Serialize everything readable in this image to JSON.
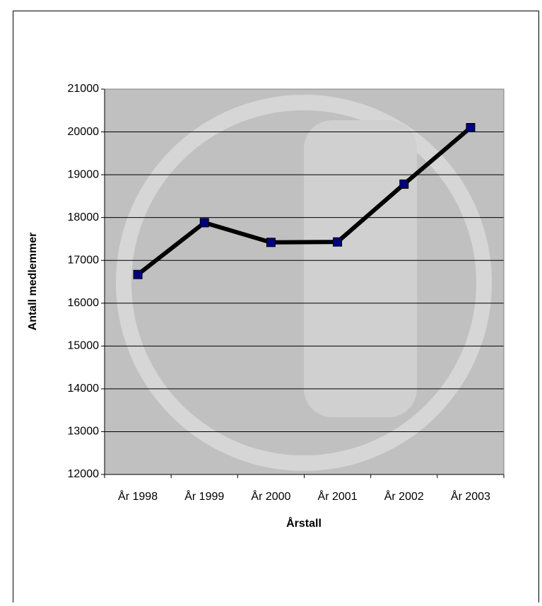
{
  "chart_data": {
    "type": "line",
    "x_label": "Årstall",
    "y_label": "Antall medlemmer",
    "categories": [
      "År 1998",
      "År 1999",
      "År 2000",
      "År 2001",
      "År 2002",
      "År 2003"
    ],
    "series": [
      {
        "name": "Antall medlemmer",
        "color": "#000000",
        "marker_color": "#000080",
        "values": [
          16670,
          17880,
          17420,
          17430,
          18780,
          20100
        ]
      }
    ],
    "ylim": [
      12000,
      21000
    ],
    "yticks": [
      12000,
      13000,
      14000,
      15000,
      16000,
      17000,
      18000,
      19000,
      20000,
      21000
    ],
    "grid": true
  }
}
